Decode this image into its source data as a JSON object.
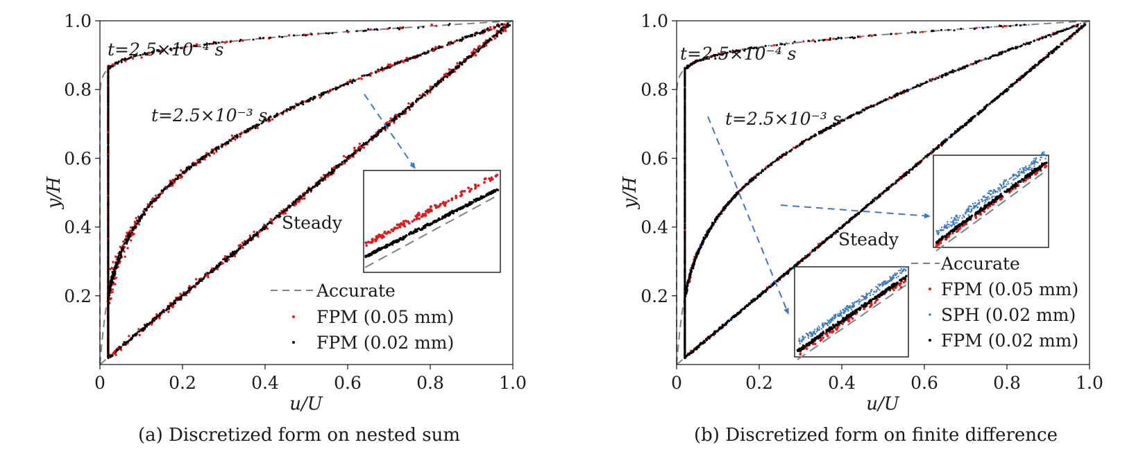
{
  "chart_data": [
    {
      "type": "scatter",
      "caption": "(a) Discretized form on nested sum",
      "xlabel": "u/U",
      "ylabel": "y/H",
      "xlim": [
        0,
        1.0
      ],
      "ylim": [
        0,
        1.0
      ],
      "xticks": [
        "0",
        "0.2",
        "0.4",
        "0.6",
        "0.8",
        "1.0"
      ],
      "yticks": [
        "0.2",
        "0.4",
        "0.6",
        "0.8",
        "1.0"
      ],
      "annotations": [
        "t=2.5×10⁻⁴ s",
        "t=2.5×10⁻³ s",
        "Steady"
      ],
      "legend": {
        "position": "lower-right",
        "entries": [
          "Accurate",
          "FPM (0.05 mm)",
          "FPM (0.02 mm)"
        ]
      },
      "series": [
        {
          "name": "Accurate",
          "style": "dashed-line",
          "color": "#808080",
          "curves": [
            "t=2.5×10⁻⁴ s",
            "t=2.5×10⁻³ s",
            "Steady"
          ]
        },
        {
          "name": "FPM (0.05 mm)",
          "style": "points",
          "color": "#e31a1c"
        },
        {
          "name": "FPM (0.02 mm)",
          "style": "points",
          "color": "#000000"
        }
      ],
      "inset": {
        "zoom_region": "Steady curve near (0.65, 0.75)"
      }
    },
    {
      "type": "scatter",
      "caption": "(b) Discretized form on finite difference",
      "xlabel": "u/U",
      "ylabel": "y/H",
      "xlim": [
        0,
        1.0
      ],
      "ylim": [
        0,
        1.0
      ],
      "xticks": [
        "0",
        "0.2",
        "0.4",
        "0.6",
        "0.8",
        "1.0"
      ],
      "yticks": [
        "0.2",
        "0.4",
        "0.6",
        "0.8",
        "1.0"
      ],
      "annotations": [
        "t=2.5×10⁻⁴ s",
        "t=2.5×10⁻³ s",
        "Steady"
      ],
      "legend": {
        "position": "lower-right",
        "entries": [
          "Accurate",
          "FPM (0.05 mm)",
          "SPH (0.02 mm)",
          "FPM (0.02 mm)"
        ]
      },
      "series": [
        {
          "name": "Accurate",
          "style": "dashed-line",
          "color": "#808080"
        },
        {
          "name": "FPM (0.05 mm)",
          "style": "points",
          "color": "#e31a1c"
        },
        {
          "name": "SPH (0.02 mm)",
          "style": "points",
          "color": "#3a78c2"
        },
        {
          "name": "FPM (0.02 mm)",
          "style": "points",
          "color": "#000000"
        }
      ],
      "insets": [
        "t=2.5×10⁻³ s curve near (0.25, 0.45)",
        "t=2.5×10⁻⁴ s curve near (0.08, 0.72)"
      ]
    }
  ]
}
